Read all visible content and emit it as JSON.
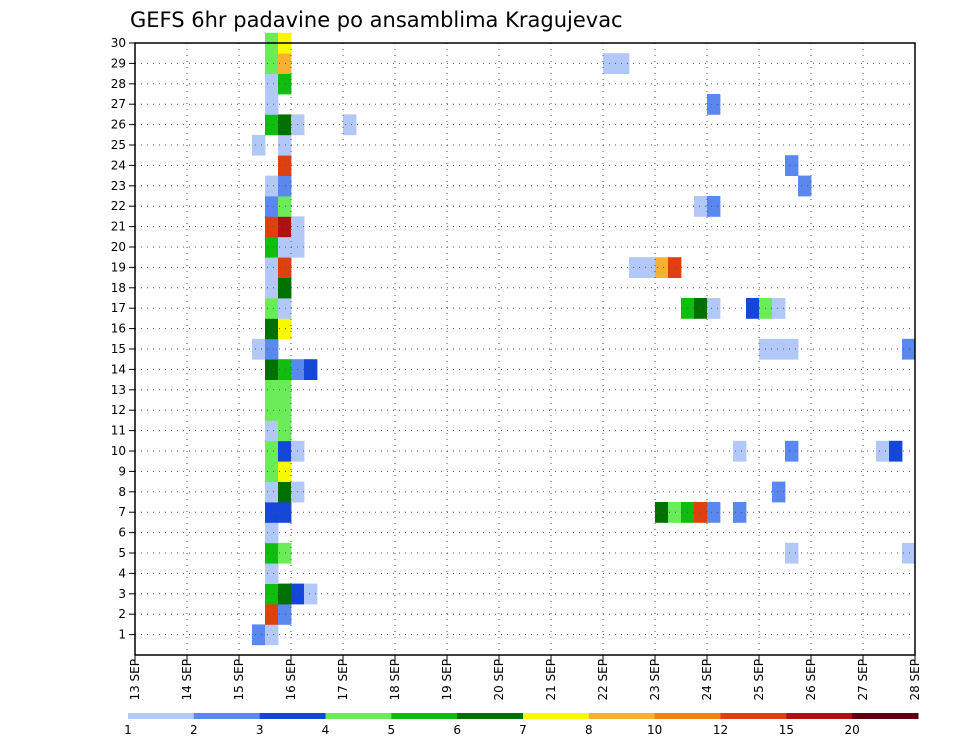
{
  "chart_data": {
    "type": "heatmap",
    "title": "GEFS 6hr padavine po ansamblima Kragujevac",
    "xlabel": "",
    "ylabel": "",
    "x_tick_labels": [
      "13 SEP",
      "14 SEP",
      "15 SEP",
      "16 SEP",
      "17 SEP",
      "18 SEP",
      "19 SEP",
      "20 SEP",
      "21 SEP",
      "22 SEP",
      "23 SEP",
      "24 SEP",
      "25 SEP",
      "26 SEP",
      "27 SEP",
      "28 SEP"
    ],
    "y_tick_labels": [
      "1",
      "2",
      "3",
      "4",
      "5",
      "6",
      "7",
      "8",
      "9",
      "10",
      "11",
      "12",
      "13",
      "14",
      "15",
      "16",
      "17",
      "18",
      "19",
      "20",
      "21",
      "22",
      "23",
      "24",
      "25",
      "26",
      "27",
      "28",
      "29",
      "30"
    ],
    "xlim_days": [
      0,
      15
    ],
    "ylim": [
      0,
      30
    ],
    "grid": true,
    "color_scale": {
      "labels": [
        "1",
        "2",
        "3",
        "4",
        "5",
        "6",
        "7",
        "8",
        "10",
        "12",
        "15",
        "20"
      ],
      "colors": [
        "#b2c8f8",
        "#5a88ee",
        "#1446d8",
        "#6aec58",
        "#10bc10",
        "#007000",
        "#f8f800",
        "#f8b030",
        "#f08010",
        "#e04010",
        "#b01010",
        "#600010"
      ]
    },
    "cells": [
      {
        "member": 1,
        "day": 2.25,
        "level": 2
      },
      {
        "member": 1,
        "day": 2.5,
        "level": 1
      },
      {
        "member": 2,
        "day": 2.5,
        "level": 10
      },
      {
        "member": 2,
        "day": 2.75,
        "level": 2
      },
      {
        "member": 3,
        "day": 2.5,
        "level": 5
      },
      {
        "member": 3,
        "day": 2.75,
        "level": 6
      },
      {
        "member": 3,
        "day": 3.0,
        "level": 3
      },
      {
        "member": 3,
        "day": 3.25,
        "level": 1
      },
      {
        "member": 4,
        "day": 2.5,
        "level": 1
      },
      {
        "member": 5,
        "day": 2.5,
        "level": 5
      },
      {
        "member": 5,
        "day": 2.75,
        "level": 4
      },
      {
        "member": 5,
        "day": 12.5,
        "level": 1
      },
      {
        "member": 5,
        "day": 14.75,
        "level": 1
      },
      {
        "member": 6,
        "day": 2.5,
        "level": 1
      },
      {
        "member": 7,
        "day": 2.5,
        "level": 3
      },
      {
        "member": 7,
        "day": 2.75,
        "level": 3
      },
      {
        "member": 7,
        "day": 10.0,
        "level": 6
      },
      {
        "member": 7,
        "day": 10.25,
        "level": 4
      },
      {
        "member": 7,
        "day": 10.5,
        "level": 5
      },
      {
        "member": 7,
        "day": 10.75,
        "level": 10
      },
      {
        "member": 7,
        "day": 11.0,
        "level": 2
      },
      {
        "member": 7,
        "day": 11.5,
        "level": 2
      },
      {
        "member": 8,
        "day": 2.5,
        "level": 1
      },
      {
        "member": 8,
        "day": 2.75,
        "level": 6
      },
      {
        "member": 8,
        "day": 3.0,
        "level": 1
      },
      {
        "member": 8,
        "day": 12.25,
        "level": 2
      },
      {
        "member": 9,
        "day": 2.5,
        "level": 4
      },
      {
        "member": 9,
        "day": 2.75,
        "level": 7
      },
      {
        "member": 10,
        "day": 2.5,
        "level": 4
      },
      {
        "member": 10,
        "day": 2.75,
        "level": 3
      },
      {
        "member": 10,
        "day": 3.0,
        "level": 1
      },
      {
        "member": 10,
        "day": 11.5,
        "level": 1
      },
      {
        "member": 10,
        "day": 12.5,
        "level": 2
      },
      {
        "member": 10,
        "day": 14.25,
        "level": 1
      },
      {
        "member": 10,
        "day": 14.5,
        "level": 3
      },
      {
        "member": 11,
        "day": 2.5,
        "level": 1
      },
      {
        "member": 11,
        "day": 2.75,
        "level": 4
      },
      {
        "member": 12,
        "day": 2.5,
        "level": 4
      },
      {
        "member": 12,
        "day": 2.75,
        "level": 4
      },
      {
        "member": 13,
        "day": 2.5,
        "level": 4
      },
      {
        "member": 13,
        "day": 2.75,
        "level": 4
      },
      {
        "member": 14,
        "day": 2.5,
        "level": 6
      },
      {
        "member": 14,
        "day": 2.75,
        "level": 5
      },
      {
        "member": 14,
        "day": 3.0,
        "level": 2
      },
      {
        "member": 14,
        "day": 3.25,
        "level": 3
      },
      {
        "member": 15,
        "day": 2.25,
        "level": 1
      },
      {
        "member": 15,
        "day": 2.5,
        "level": 2
      },
      {
        "member": 15,
        "day": 12.0,
        "level": 1
      },
      {
        "member": 15,
        "day": 12.25,
        "level": 1
      },
      {
        "member": 15,
        "day": 12.5,
        "level": 1
      },
      {
        "member": 15,
        "day": 14.75,
        "level": 2
      },
      {
        "member": 16,
        "day": 2.5,
        "level": 6
      },
      {
        "member": 16,
        "day": 2.75,
        "level": 7
      },
      {
        "member": 17,
        "day": 2.5,
        "level": 4
      },
      {
        "member": 17,
        "day": 2.75,
        "level": 1
      },
      {
        "member": 17,
        "day": 10.5,
        "level": 5
      },
      {
        "member": 17,
        "day": 10.75,
        "level": 6
      },
      {
        "member": 17,
        "day": 11.0,
        "level": 1
      },
      {
        "member": 17,
        "day": 11.75,
        "level": 3
      },
      {
        "member": 17,
        "day": 12.0,
        "level": 4
      },
      {
        "member": 17,
        "day": 12.25,
        "level": 1
      },
      {
        "member": 18,
        "day": 2.5,
        "level": 1
      },
      {
        "member": 18,
        "day": 2.75,
        "level": 6
      },
      {
        "member": 19,
        "day": 2.5,
        "level": 1
      },
      {
        "member": 19,
        "day": 2.75,
        "level": 10
      },
      {
        "member": 19,
        "day": 9.5,
        "level": 1
      },
      {
        "member": 19,
        "day": 9.75,
        "level": 1
      },
      {
        "member": 19,
        "day": 10.0,
        "level": 8
      },
      {
        "member": 19,
        "day": 10.25,
        "level": 10
      },
      {
        "member": 20,
        "day": 2.5,
        "level": 5
      },
      {
        "member": 20,
        "day": 2.75,
        "level": 1
      },
      {
        "member": 20,
        "day": 3.0,
        "level": 1
      },
      {
        "member": 21,
        "day": 2.5,
        "level": 10
      },
      {
        "member": 21,
        "day": 2.75,
        "level": 11
      },
      {
        "member": 21,
        "day": 3.0,
        "level": 1
      },
      {
        "member": 22,
        "day": 2.5,
        "level": 2
      },
      {
        "member": 22,
        "day": 2.75,
        "level": 4
      },
      {
        "member": 22,
        "day": 10.75,
        "level": 1
      },
      {
        "member": 22,
        "day": 11.0,
        "level": 2
      },
      {
        "member": 23,
        "day": 2.5,
        "level": 1
      },
      {
        "member": 23,
        "day": 2.75,
        "level": 2
      },
      {
        "member": 23,
        "day": 12.75,
        "level": 2
      },
      {
        "member": 24,
        "day": 2.75,
        "level": 10
      },
      {
        "member": 24,
        "day": 12.5,
        "level": 2
      },
      {
        "member": 25,
        "day": 2.25,
        "level": 1
      },
      {
        "member": 25,
        "day": 2.75,
        "level": 1
      },
      {
        "member": 26,
        "day": 2.5,
        "level": 5
      },
      {
        "member": 26,
        "day": 2.75,
        "level": 6
      },
      {
        "member": 26,
        "day": 3.0,
        "level": 1
      },
      {
        "member": 26,
        "day": 4.0,
        "level": 1
      },
      {
        "member": 27,
        "day": 2.5,
        "level": 1
      },
      {
        "member": 27,
        "day": 11.0,
        "level": 2
      },
      {
        "member": 28,
        "day": 2.5,
        "level": 1
      },
      {
        "member": 28,
        "day": 2.75,
        "level": 5
      },
      {
        "member": 29,
        "day": 2.5,
        "level": 4
      },
      {
        "member": 29,
        "day": 2.75,
        "level": 8
      },
      {
        "member": 29,
        "day": 9.0,
        "level": 1
      },
      {
        "member": 29,
        "day": 9.25,
        "level": 1
      },
      {
        "member": 30,
        "day": 2.5,
        "level": 4
      },
      {
        "member": 30,
        "day": 2.75,
        "level": 7
      }
    ]
  }
}
